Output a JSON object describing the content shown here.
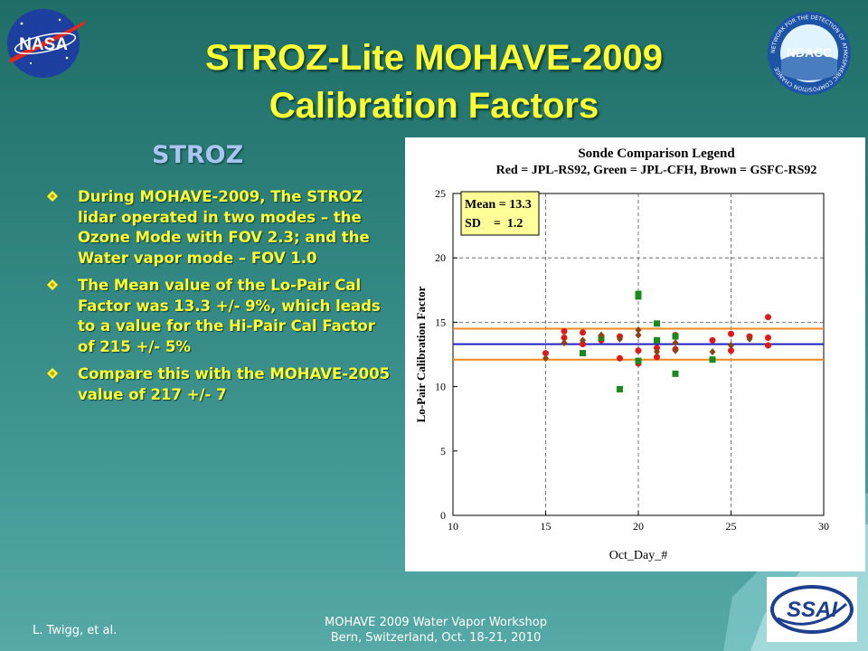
{
  "slide": {
    "title_line1": "STROZ-Lite MOHAVE-2009",
    "title_line2": "Calibration Factors",
    "subheading": "STROZ",
    "bullets": [
      "During MOHAVE-2009, The STROZ lidar operated in two modes – the Ozone Mode with FOV 2.3; and the Water vapor mode – FOV 1.0",
      "The Mean value of the Lo-Pair Cal Factor was 13.3 +/- 9%, which leads to a value for the Hi-Pair Cal Factor of 215 +/- 5%",
      "Compare this with the MOHAVE-2005 value of 217 +/- 7"
    ],
    "footer_left": "L. Twigg, et al.",
    "footer_line1": "MOHAVE 2009 Water Vapor Workshop",
    "footer_line2": "Bern, Switzerland, Oct. 18-21, 2010"
  },
  "logos": {
    "nasa": "NASA",
    "ndacc": "NDACC",
    "ndacc_ring": "NETWORK FOR THE DETECTION OF ATMOSPHERIC COMPOSITION CHANGE",
    "ssai": "SSAI"
  },
  "colors": {
    "title": "#ffff33",
    "subheading": "#a9c6f2",
    "red_series": "#e01818",
    "green_series": "#1a8a1a",
    "brown_series": "#8b4513",
    "mean_line": "#2020c0",
    "sd_lines": "#f08a20"
  },
  "chart_data": {
    "type": "scatter",
    "title": "Sonde Comparison Legend",
    "subtitle": "Red = JPL-RS92, Green = JPL-CFH, Brown = GSFC-RS92",
    "xlabel": "Oct_Day_#",
    "ylabel": "Lo-Pair Calibration Factor",
    "xlim": [
      10,
      30
    ],
    "ylim": [
      0,
      25
    ],
    "xticks": [
      10,
      15,
      20,
      25,
      30
    ],
    "yticks": [
      0,
      5,
      10,
      15,
      20,
      25
    ],
    "grid": "dashed at x=15,20,25 and y=15,20",
    "stats_box": {
      "line1": "Mean = 13.3",
      "line2": "SD    =  1.2"
    },
    "reference_lines": {
      "mean": 13.3,
      "upper": 14.5,
      "lower": 12.1
    },
    "series": [
      {
        "name": "JPL-RS92",
        "color": "#e01818",
        "marker": "circle",
        "x": [
          15,
          16,
          16,
          17,
          17,
          18,
          19,
          19,
          20,
          20,
          20,
          21,
          21,
          22,
          22,
          24,
          25,
          25,
          26,
          27,
          27,
          27
        ],
        "y": [
          12.6,
          14.3,
          13.8,
          14.2,
          13.3,
          13.6,
          13.9,
          12.2,
          12.8,
          12.0,
          11.8,
          13.0,
          12.3,
          14.0,
          12.9,
          13.6,
          14.1,
          12.8,
          13.9,
          15.4,
          13.8,
          13.2
        ]
      },
      {
        "name": "JPL-CFH",
        "color": "#1a8a1a",
        "marker": "square",
        "x": [
          17,
          18,
          19,
          20,
          20,
          20,
          21,
          21,
          22,
          22,
          24
        ],
        "y": [
          12.6,
          13.8,
          9.8,
          17.2,
          17.0,
          12.0,
          14.9,
          13.6,
          13.9,
          11.0,
          12.1
        ]
      },
      {
        "name": "GSFC-RS92",
        "color": "#8b4513",
        "marker": "diamond",
        "x": [
          15,
          16,
          17,
          18,
          19,
          20,
          20,
          21,
          22,
          22,
          24,
          25,
          26
        ],
        "y": [
          12.2,
          13.4,
          13.6,
          14.0,
          13.7,
          14.4,
          14.0,
          12.7,
          13.4,
          12.8,
          12.7,
          13.2,
          13.7
        ]
      }
    ]
  }
}
